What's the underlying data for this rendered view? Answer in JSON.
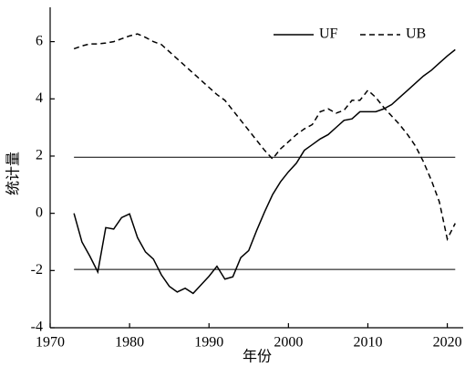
{
  "chart_data": {
    "type": "line",
    "xlabel": "年份",
    "ylabel": "统计量",
    "x": [
      1973,
      1974,
      1975,
      1976,
      1977,
      1978,
      1979,
      1980,
      1981,
      1982,
      1983,
      1984,
      1985,
      1986,
      1987,
      1988,
      1989,
      1990,
      1991,
      1992,
      1993,
      1994,
      1995,
      1996,
      1997,
      1998,
      1999,
      2000,
      2001,
      2002,
      2003,
      2004,
      2005,
      2006,
      2007,
      2008,
      2009,
      2010,
      2011,
      2012,
      2013,
      2014,
      2015,
      2016,
      2017,
      2018,
      2019,
      2020,
      2021
    ],
    "series": [
      {
        "name": "UF",
        "color": "#000000",
        "dash": false,
        "values": [
          0,
          -1.0,
          -1.5,
          -2.05,
          -0.5,
          -0.55,
          -0.15,
          -0.02,
          -0.85,
          -1.35,
          -1.6,
          -2.15,
          -2.55,
          -2.75,
          -2.62,
          -2.8,
          -2.5,
          -2.2,
          -1.85,
          -2.3,
          -2.22,
          -1.55,
          -1.3,
          -0.6,
          0.05,
          0.65,
          1.1,
          1.45,
          1.75,
          2.2,
          2.4,
          2.6,
          2.75,
          3.0,
          3.25,
          3.3,
          3.55,
          3.55,
          3.55,
          3.65,
          3.8,
          4.05,
          4.3,
          4.55,
          4.8,
          5.0,
          5.25,
          5.5,
          5.72
        ]
      },
      {
        "name": "UB",
        "color": "#000000",
        "dash": true,
        "values": [
          5.75,
          5.85,
          5.92,
          5.92,
          5.95,
          6.0,
          6.1,
          6.2,
          6.27,
          6.15,
          6.0,
          5.9,
          5.65,
          5.4,
          5.15,
          4.9,
          4.65,
          4.4,
          4.15,
          3.95,
          3.6,
          3.25,
          2.9,
          2.55,
          2.2,
          1.9,
          2.25,
          2.5,
          2.75,
          2.95,
          3.1,
          3.55,
          3.65,
          3.5,
          3.6,
          3.95,
          3.95,
          4.3,
          4.05,
          3.7,
          3.4,
          3.1,
          2.75,
          2.35,
          1.8,
          1.15,
          0.4,
          -0.9,
          -0.35
        ]
      }
    ],
    "hlines": [
      1.96,
      -1.96
    ],
    "xlim": [
      1970,
      2022
    ],
    "xticks": [
      1970,
      1980,
      1990,
      2000,
      2010,
      2020
    ],
    "ylim": [
      -4,
      7.2
    ],
    "yticks": [
      -4,
      -2,
      0,
      2,
      4,
      6
    ],
    "legend": "top-right"
  }
}
